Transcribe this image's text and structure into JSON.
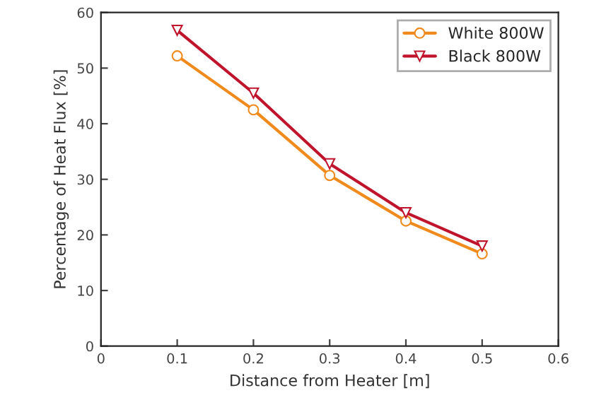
{
  "chart_data": {
    "type": "line",
    "xlabel": "Distance from Heater [m]",
    "ylabel": "Percentage of Heat Flux [%]",
    "x": [
      0.1,
      0.2,
      0.3,
      0.4,
      0.5
    ],
    "series": [
      {
        "name": "White 800W",
        "color": "#f08a1c",
        "marker": "circle",
        "values": [
          52.2,
          42.5,
          30.7,
          22.5,
          16.6
        ]
      },
      {
        "name": "Black 800W",
        "color": "#c0142c",
        "marker": "triangle",
        "values": [
          56.8,
          45.5,
          32.8,
          24.0,
          18.0
        ]
      }
    ],
    "xlim": [
      0,
      0.6
    ],
    "xticks": [
      0,
      0.1,
      0.2,
      0.3,
      0.4,
      0.5,
      0.6
    ],
    "ylim": [
      0,
      60
    ],
    "yticks": [
      0,
      10,
      20,
      30,
      40,
      50,
      60
    ],
    "grid": false,
    "legend": "top right",
    "line_style": "solid"
  }
}
